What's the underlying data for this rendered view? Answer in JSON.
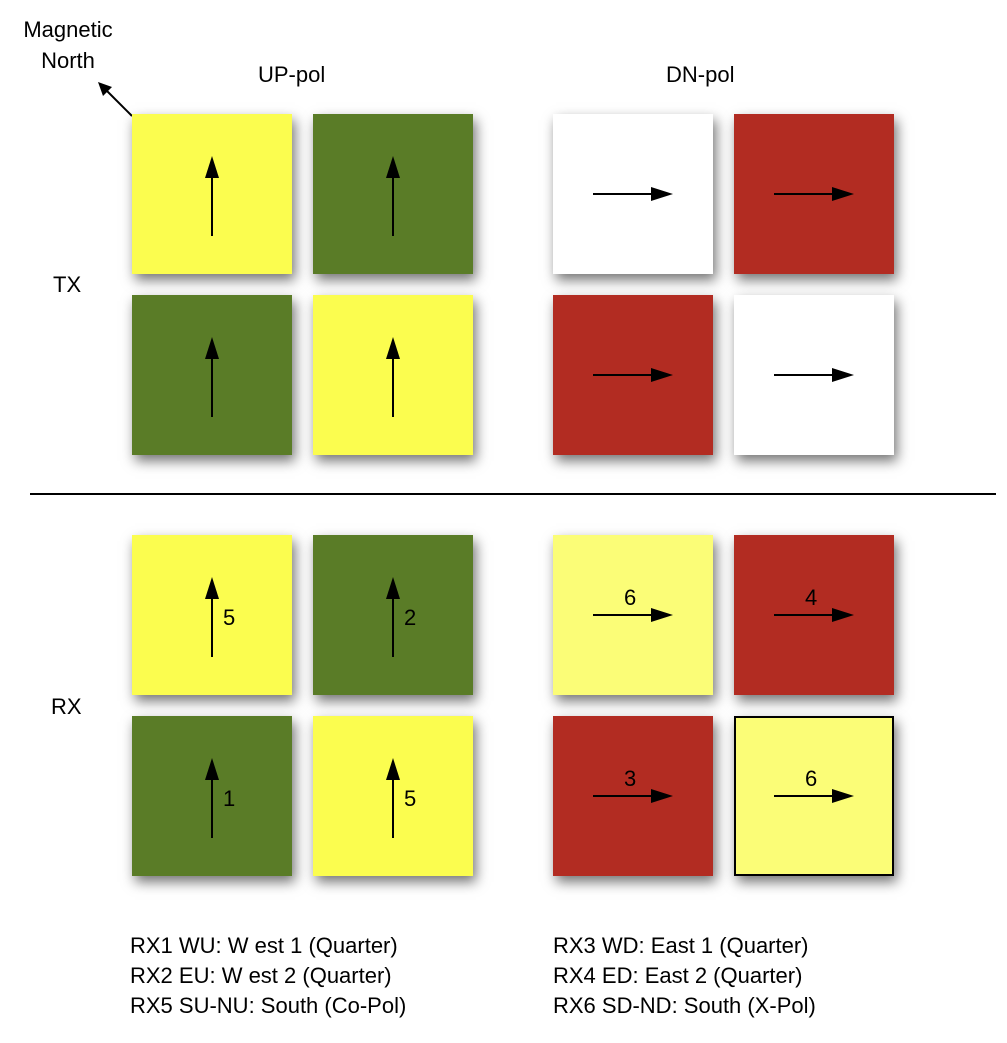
{
  "compass": {
    "line1": "Magnetic",
    "line2": "North"
  },
  "columns": {
    "up_pol": "UP-pol",
    "dn_pol": "DN-pol"
  },
  "rows": {
    "tx": "TX",
    "rx": "RX"
  },
  "colors": {
    "yellow": "#fbfd4f",
    "green": "#5a7c27",
    "red": "#b22c22",
    "white": "#ffffff",
    "light_yellow": "#fbfd77"
  },
  "tx_tiles": [
    {
      "color": "yellow",
      "arrow": "up"
    },
    {
      "color": "green",
      "arrow": "up"
    },
    {
      "color": "white",
      "arrow": "right"
    },
    {
      "color": "red",
      "arrow": "right"
    },
    {
      "color": "green",
      "arrow": "up"
    },
    {
      "color": "yellow",
      "arrow": "up"
    },
    {
      "color": "red",
      "arrow": "right"
    },
    {
      "color": "white",
      "arrow": "right"
    }
  ],
  "rx_tiles": [
    {
      "color": "yellow",
      "arrow": "up",
      "number": "5"
    },
    {
      "color": "green",
      "arrow": "up",
      "number": "2"
    },
    {
      "color": "light_yellow",
      "arrow": "right",
      "number": "6"
    },
    {
      "color": "red",
      "arrow": "right",
      "number": "4"
    },
    {
      "color": "green",
      "arrow": "up",
      "number": "1"
    },
    {
      "color": "yellow",
      "arrow": "up",
      "number": "5"
    },
    {
      "color": "red",
      "arrow": "right",
      "number": "3"
    },
    {
      "color": "light_yellow",
      "arrow": "right",
      "number": "6",
      "outlined": true
    }
  ],
  "legend_left": [
    "RX1 WU: W est 1 (Quarter)",
    "RX2 EU: W est 2 (Quarter)",
    "RX5 SU-NU: South (Co-Pol)"
  ],
  "legend_right": [
    "RX3 WD: East 1 (Quarter)",
    "RX4 ED: East 2 (Quarter)",
    "RX6 SD-ND: South (X-Pol)"
  ]
}
